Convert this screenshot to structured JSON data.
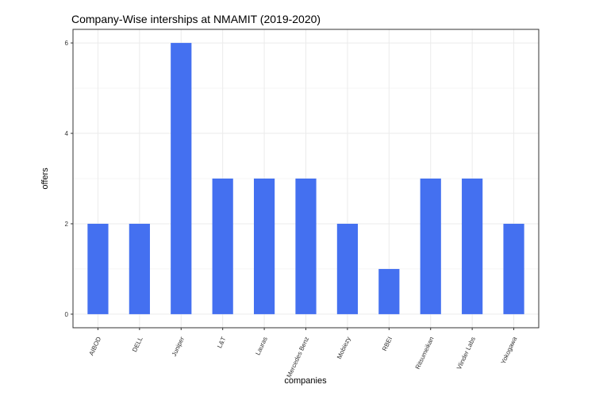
{
  "chart_data": {
    "type": "bar",
    "title": "Company-Wise interships at NMAMIT (2019-2020)",
    "xlabel": "companies",
    "ylabel": "offers",
    "categories": [
      "AIBOD",
      "DELL",
      "Juniper",
      "L&T",
      "Lauras",
      "Mercedes Benz",
      "Mobiezy",
      "RBEI",
      "Ritsumeikan",
      "Vlinder Labs",
      "Yokogawa"
    ],
    "values": [
      2,
      2,
      6,
      3,
      3,
      3,
      2,
      1,
      3,
      3,
      2
    ],
    "ylim": [
      -0.3,
      6.3
    ],
    "yticks": [
      0,
      2,
      4,
      6
    ],
    "grid": true,
    "bar_color": "#4470F0",
    "grid_color": "#EBEBEB"
  }
}
